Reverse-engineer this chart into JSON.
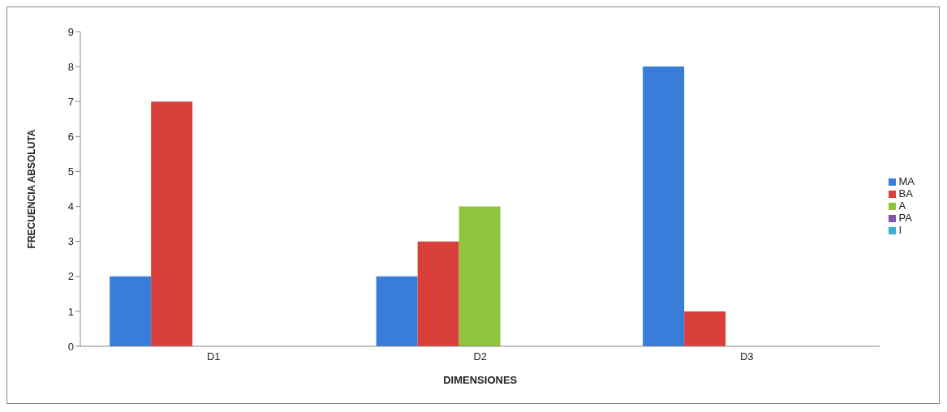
{
  "chart_data": {
    "type": "bar",
    "xlabel": "DIMENSIONES",
    "ylabel": "FRECUENCIA ABSOLUTA",
    "categories": [
      "D1",
      "D2",
      "D3"
    ],
    "series": [
      {
        "name": "MA",
        "color": "#3a7dd8",
        "values": [
          2,
          2,
          8
        ]
      },
      {
        "name": "BA",
        "color": "#d9403c",
        "values": [
          7,
          3,
          1
        ]
      },
      {
        "name": "A",
        "color": "#8fc43c",
        "values": [
          0,
          4,
          0
        ]
      },
      {
        "name": "PA",
        "color": "#7d55a8",
        "values": [
          0,
          0,
          0
        ]
      },
      {
        "name": "I",
        "color": "#3ab0cc",
        "values": [
          0,
          0,
          0
        ]
      }
    ],
    "ylim": [
      0,
      9
    ],
    "yticks": [
      0,
      1,
      2,
      3,
      4,
      5,
      6,
      7,
      8,
      9
    ],
    "grid": false,
    "legend": "right"
  }
}
